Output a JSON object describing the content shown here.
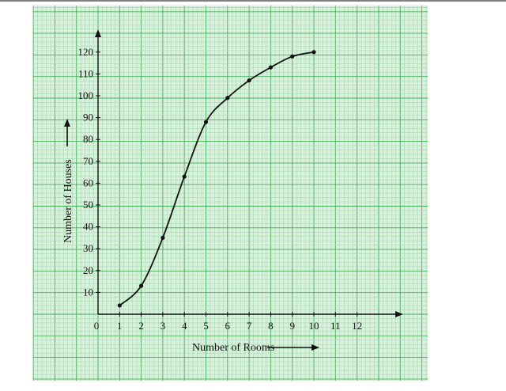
{
  "colors": {
    "paper": "#d8f1dc",
    "grid_minor": "#9ed6a6",
    "grid_major": "#48ad5a",
    "ink": "#111111"
  },
  "chart_data": {
    "type": "line",
    "xlabel": "Number of Rooms",
    "ylabel": "Number of Houses",
    "origin_label": "0",
    "x_ticks": [
      1,
      2,
      3,
      4,
      5,
      6,
      7,
      8,
      9,
      10,
      11,
      12
    ],
    "y_ticks": [
      10,
      20,
      30,
      40,
      50,
      60,
      70,
      80,
      90,
      100,
      110,
      120
    ],
    "xlim": [
      0,
      13.5
    ],
    "ylim": [
      0,
      122
    ],
    "grid": true,
    "series": [
      {
        "x": [
          1,
          2,
          3,
          4,
          5,
          6,
          7,
          8,
          9,
          10
        ],
        "y": [
          4,
          13,
          35,
          63,
          88,
          99,
          107,
          113,
          118,
          120
        ]
      }
    ]
  }
}
